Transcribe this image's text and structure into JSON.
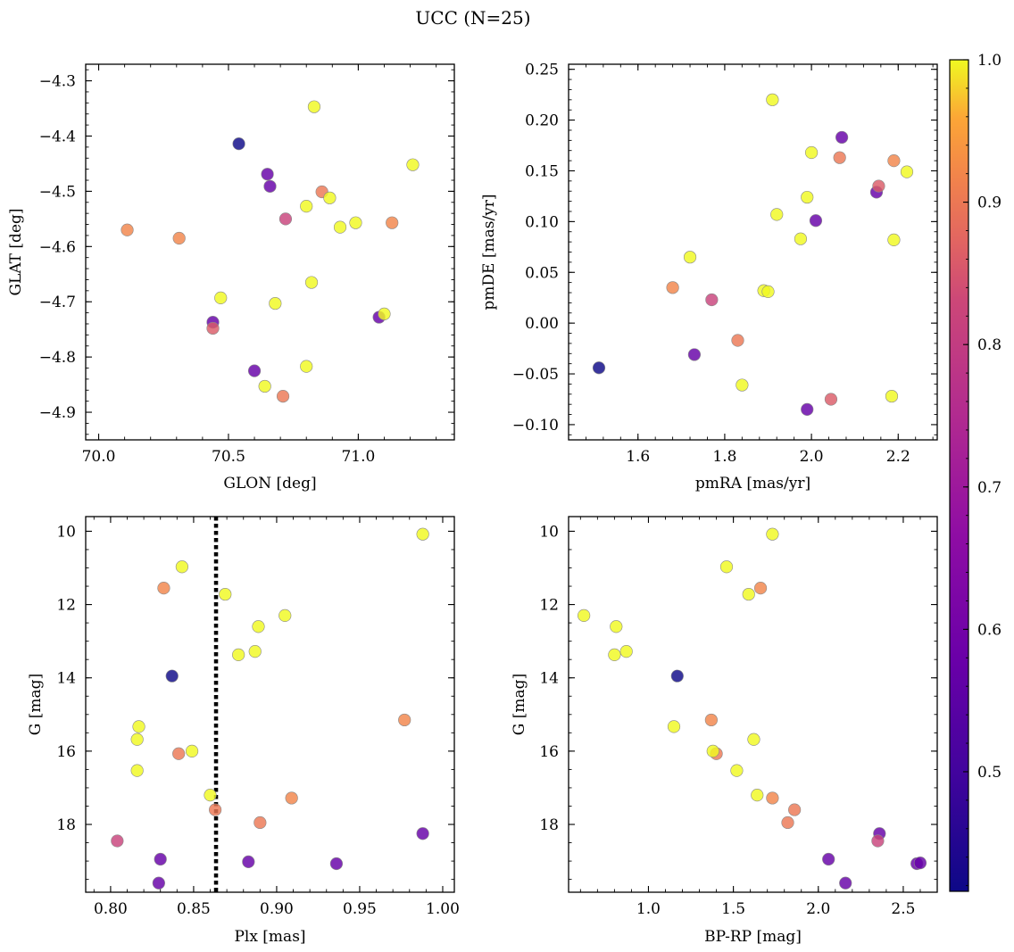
{
  "title": "UCC (N=25)",
  "colorbar": {
    "ticks": [
      "1.0",
      "0.9",
      "0.8",
      "0.7",
      "0.6",
      "0.5"
    ],
    "tick_values": [
      1.0,
      0.9,
      0.8,
      0.7,
      0.6,
      0.5
    ],
    "range": [
      0.416,
      1.0
    ],
    "colormap": "plasma"
  },
  "panels": [
    {
      "xlabel": "GLON [deg]",
      "ylabel": "GLAT [deg]",
      "xticks": [
        "70.0",
        "70.5",
        "71.0"
      ],
      "yticks": [
        "−4.3",
        "−4.4",
        "−4.5",
        "−4.6",
        "−4.7",
        "−4.8",
        "−4.9"
      ]
    },
    {
      "xlabel": "pmRA [mas/yr]",
      "ylabel": "pmDE [mas/yr]",
      "xticks": [
        "1.6",
        "1.8",
        "2.0",
        "2.2"
      ],
      "yticks": [
        "0.25",
        "0.20",
        "0.15",
        "0.10",
        "0.05",
        "0.00",
        "−0.05",
        "−0.10"
      ]
    },
    {
      "xlabel": "Plx [mas]",
      "ylabel": "G [mag]",
      "xticks": [
        "0.80",
        "0.85",
        "0.90",
        "0.95",
        "1.00"
      ],
      "yticks": [
        "10",
        "12",
        "14",
        "16",
        "18"
      ]
    },
    {
      "xlabel": "BP-RP [mag]",
      "ylabel": "G [mag]",
      "xticks": [
        "1.0",
        "1.5",
        "2.0",
        "2.5"
      ],
      "yticks": [
        "10",
        "12",
        "14",
        "16",
        "18"
      ]
    }
  ],
  "chart_data": [
    {
      "type": "scatter",
      "xlabel": "GLON [deg]",
      "ylabel": "GLAT [deg]",
      "xlim": [
        69.95,
        71.37
      ],
      "ylim": [
        -4.95,
        -4.27
      ],
      "xticks": [
        70.0,
        70.5,
        71.0
      ],
      "yticks": [
        -4.3,
        -4.4,
        -4.5,
        -4.6,
        -4.7,
        -4.8,
        -4.9
      ],
      "x": [
        70.54,
        70.65,
        70.66,
        70.72,
        70.44,
        70.6,
        71.08,
        70.86,
        70.11,
        70.31,
        70.44,
        70.71,
        70.83,
        70.89,
        70.8,
        71.21,
        70.82,
        70.93,
        70.99,
        71.13,
        70.47,
        70.68,
        71.1,
        70.8,
        70.64
      ],
      "y": [
        -4.414,
        -4.469,
        -4.491,
        -4.55,
        -4.737,
        -4.825,
        -4.728,
        -4.501,
        -4.57,
        -4.585,
        -4.748,
        -4.871,
        -4.347,
        -4.512,
        -4.527,
        -4.452,
        -4.665,
        -4.565,
        -4.557,
        -4.557,
        -4.693,
        -4.703,
        -4.722,
        -4.817,
        -4.853
      ],
      "color": [
        0.416,
        0.57,
        0.57,
        0.82,
        0.57,
        0.57,
        0.57,
        0.9,
        0.92,
        0.92,
        0.86,
        0.9,
        1.0,
        1.0,
        1.0,
        1.0,
        1.0,
        1.0,
        1.0,
        0.92,
        1.0,
        1.0,
        1.0,
        1.0,
        1.0
      ]
    },
    {
      "type": "scatter",
      "xlabel": "pmRA [mas/yr]",
      "ylabel": "pmDE [mas/yr]",
      "xlim": [
        1.44,
        2.29
      ],
      "ylim": [
        -0.115,
        0.255
      ],
      "xticks": [
        1.6,
        1.8,
        2.0,
        2.2
      ],
      "yticks": [
        0.25,
        0.2,
        0.15,
        0.1,
        0.05,
        0.0,
        -0.05,
        -0.1
      ],
      "x": [
        1.51,
        2.07,
        2.01,
        2.15,
        1.73,
        1.99,
        2.155,
        2.045,
        1.68,
        1.77,
        1.83,
        2.065,
        1.91,
        2.0,
        2.19,
        2.22,
        1.99,
        1.92,
        1.975,
        2.19,
        1.72,
        1.89,
        1.9,
        1.84,
        2.185
      ],
      "y": [
        -0.044,
        0.183,
        0.101,
        0.129,
        -0.031,
        -0.085,
        0.135,
        -0.075,
        0.035,
        0.023,
        -0.017,
        0.163,
        0.22,
        0.168,
        0.16,
        0.149,
        0.124,
        0.107,
        0.083,
        0.082,
        0.065,
        0.032,
        0.031,
        -0.061,
        -0.072
      ],
      "color": [
        0.416,
        0.57,
        0.57,
        0.57,
        0.57,
        0.57,
        0.86,
        0.86,
        0.92,
        0.82,
        0.9,
        0.9,
        1.0,
        1.0,
        0.92,
        1.0,
        1.0,
        1.0,
        1.0,
        1.0,
        1.0,
        1.0,
        1.0,
        1.0,
        1.0
      ]
    },
    {
      "type": "scatter",
      "xlabel": "Plx [mas]",
      "ylabel": "G [mag]",
      "y_inverted": true,
      "xlim": [
        0.785,
        1.007
      ],
      "ylim": [
        19.85,
        9.6
      ],
      "xticks": [
        0.8,
        0.85,
        0.9,
        0.95,
        1.0
      ],
      "yticks": [
        10,
        12,
        14,
        16,
        18
      ],
      "vline": {
        "x": 0.8635,
        "style": "dotted"
      },
      "x": [
        0.837,
        0.83,
        0.829,
        0.883,
        0.936,
        0.988,
        0.804,
        0.863,
        0.832,
        0.841,
        0.89,
        0.909,
        0.977,
        0.988,
        0.843,
        0.869,
        0.889,
        0.905,
        0.877,
        0.887,
        0.817,
        0.816,
        0.849,
        0.816,
        0.86
      ],
      "y": [
        13.95,
        18.95,
        19.6,
        19.02,
        19.07,
        18.25,
        18.45,
        17.6,
        11.55,
        16.07,
        17.95,
        17.28,
        15.15,
        10.08,
        10.97,
        11.72,
        12.6,
        12.3,
        13.37,
        13.28,
        15.33,
        15.68,
        16.0,
        16.53,
        17.2
      ],
      "color": [
        0.416,
        0.57,
        0.57,
        0.57,
        0.57,
        0.57,
        0.82,
        0.9,
        0.92,
        0.9,
        0.9,
        0.92,
        0.92,
        1.0,
        1.0,
        1.0,
        1.0,
        1.0,
        1.0,
        1.0,
        1.0,
        1.0,
        1.0,
        1.0,
        1.0
      ]
    },
    {
      "type": "scatter",
      "xlabel": "BP-RP [mag]",
      "ylabel": "G [mag]",
      "y_inverted": true,
      "xlim": [
        0.53,
        2.7
      ],
      "ylim": [
        19.85,
        9.6
      ],
      "xticks": [
        1.0,
        1.5,
        2.0,
        2.5
      ],
      "yticks": [
        10,
        12,
        14,
        16,
        18
      ],
      "x": [
        1.17,
        2.06,
        2.16,
        2.36,
        2.58,
        2.6,
        2.35,
        1.66,
        1.37,
        1.4,
        1.86,
        1.82,
        1.73,
        1.46,
        1.59,
        0.62,
        0.81,
        0.8,
        0.87,
        1.15,
        1.62,
        1.38,
        1.52,
        1.64,
        1.73
      ],
      "y": [
        13.95,
        18.95,
        19.6,
        18.25,
        19.07,
        19.05,
        18.45,
        11.55,
        15.15,
        16.07,
        17.6,
        17.95,
        10.08,
        10.97,
        11.72,
        12.3,
        12.6,
        13.37,
        13.28,
        15.33,
        15.68,
        16.0,
        16.53,
        17.2,
        17.28
      ],
      "color": [
        0.416,
        0.57,
        0.57,
        0.57,
        0.57,
        0.57,
        0.82,
        0.92,
        0.92,
        0.9,
        0.9,
        0.9,
        1.0,
        1.0,
        1.0,
        1.0,
        1.0,
        1.0,
        1.0,
        1.0,
        1.0,
        1.0,
        1.0,
        1.0,
        0.92
      ]
    }
  ]
}
